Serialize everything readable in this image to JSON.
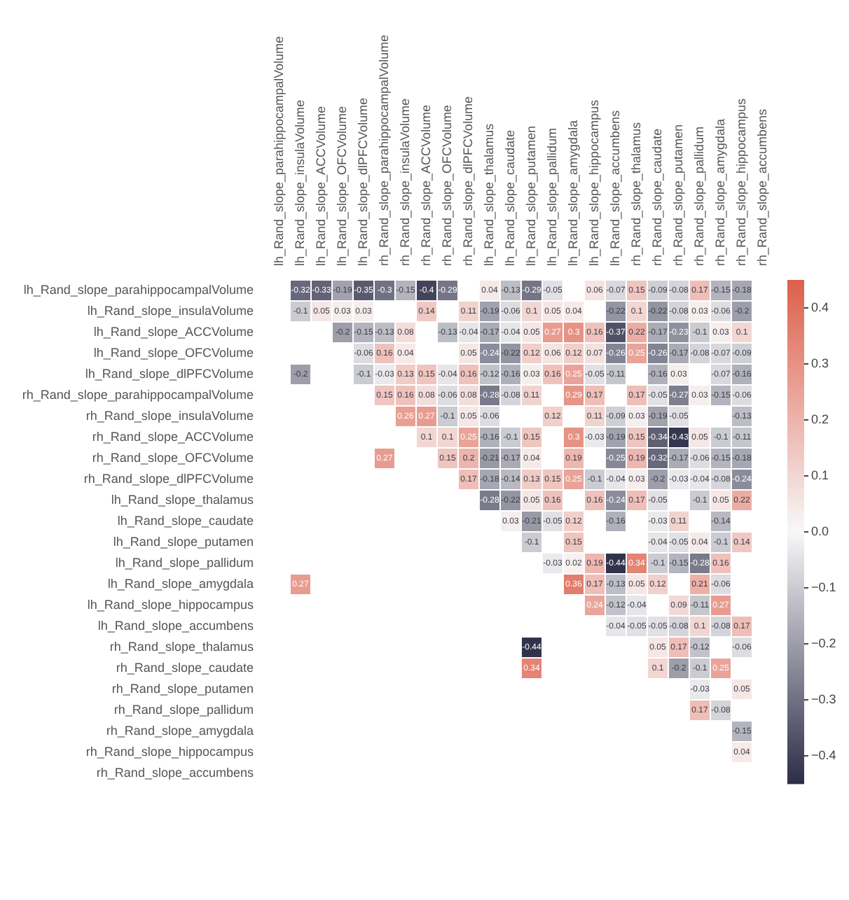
{
  "chart_data": {
    "type": "heatmap",
    "categories": [
      "lh_Rand_slope_parahippocampalVolume",
      "lh_Rand_slope_insulaVolume",
      "lh_Rand_slope_ACCVolume",
      "lh_Rand_slope_OFCVolume",
      "lh_Rand_slope_dlPFCVolume",
      "rh_Rand_slope_parahippocampalVolume",
      "rh_Rand_slope_insulaVolume",
      "rh_Rand_slope_ACCVolume",
      "rh_Rand_slope_OFCVolume",
      "rh_Rand_slope_dlPFCVolume",
      "lh_Rand_slope_thalamus",
      "lh_Rand_slope_caudate",
      "lh_Rand_slope_putamen",
      "lh_Rand_slope_pallidum",
      "lh_Rand_slope_amygdala",
      "lh_Rand_slope_hippocampus",
      "lh_Rand_slope_accumbens",
      "rh_Rand_slope_thalamus",
      "rh_Rand_slope_caudate",
      "rh_Rand_slope_putamen",
      "rh_Rand_slope_pallidum",
      "rh_Rand_slope_amygdala",
      "rh_Rand_slope_hippocampus",
      "rh_Rand_slope_accumbens"
    ],
    "y_categories": [
      "lh_Rand_slope_parahippocampalVolume",
      "lh_Rand_slope_insulaVolume",
      "lh_Rand_slope_ACCVolume",
      "lh_Rand_slope_OFCVolume",
      "lh_Rand_slope_dlPFCVolume",
      "rh_Rand_slope_parahippocampalVolume",
      "rh_Rand_slope_insulaVolume",
      "rh_Rand_slope_ACCVolume",
      "rh_Rand_slope_OFCVolume",
      "rh_Rand_slope_dlPFCVolume",
      "lh_Rand_slope_thalamus",
      "lh_Rand_slope_caudate",
      "lh_Rand_slope_putamen",
      "lh_Rand_slope_pallidum",
      "lh_Rand_slope_amygdala",
      "lh_Rand_slope_hippocampus",
      "lh_Rand_slope_accumbens",
      "rh_Rand_slope_thalamus",
      "rh_Rand_slope_caudate",
      "rh_Rand_slope_putamen",
      "rh_Rand_slope_pallidum",
      "rh_Rand_slope_amygdala",
      "rh_Rand_slope_hippocampus",
      "rh_Rand_slope_accumbens"
    ],
    "cells": [
      [
        null,
        -0.32,
        -0.33,
        -0.19,
        -0.35,
        -0.3,
        -0.15,
        -0.4,
        -0.29,
        null,
        0.04,
        -0.13,
        -0.29,
        -0.05,
        null,
        0.06,
        -0.07,
        0.15,
        -0.09,
        -0.08,
        0.17,
        -0.15,
        -0.18,
        null
      ],
      [
        null,
        -0.1,
        0.05,
        0.03,
        0.03,
        null,
        null,
        0.14,
        null,
        0.11,
        -0.19,
        -0.06,
        0.1,
        0.05,
        0.04,
        null,
        -0.22,
        0.1,
        -0.22,
        -0.08,
        0.03,
        -0.06,
        -0.2,
        null
      ],
      [
        null,
        null,
        null,
        -0.2,
        -0.15,
        -0.13,
        0.08,
        null,
        -0.13,
        -0.04,
        -0.17,
        -0.04,
        0.05,
        0.27,
        0.3,
        0.16,
        -0.37,
        0.22,
        -0.17,
        -0.23,
        -0.1,
        0.03,
        0.1,
        null
      ],
      [
        null,
        null,
        null,
        null,
        -0.06,
        0.16,
        0.04,
        null,
        null,
        0.05,
        -0.24,
        -0.22,
        0.12,
        0.06,
        0.12,
        0.07,
        -0.26,
        0.25,
        -0.26,
        -0.17,
        -0.08,
        -0.07,
        -0.09,
        null
      ],
      [
        null,
        -0.2,
        null,
        null,
        -0.1,
        -0.03,
        0.13,
        0.15,
        -0.04,
        0.16,
        -0.12,
        -0.16,
        0.03,
        0.16,
        0.25,
        -0.05,
        -0.11,
        null,
        -0.16,
        0.03,
        null,
        -0.07,
        -0.16,
        null
      ],
      [
        null,
        null,
        null,
        null,
        null,
        0.15,
        0.16,
        0.08,
        -0.06,
        0.08,
        -0.28,
        -0.08,
        0.11,
        null,
        0.29,
        0.17,
        null,
        0.17,
        -0.05,
        -0.27,
        0.03,
        -0.15,
        -0.06,
        null
      ],
      [
        null,
        null,
        null,
        null,
        null,
        null,
        0.26,
        0.27,
        -0.1,
        0.05,
        -0.06,
        null,
        null,
        0.12,
        null,
        0.11,
        -0.09,
        0.03,
        -0.19,
        -0.05,
        null,
        null,
        -0.13,
        null
      ],
      [
        null,
        null,
        null,
        null,
        null,
        null,
        null,
        0.1,
        0.1,
        0.25,
        -0.16,
        -0.1,
        0.15,
        null,
        0.3,
        -0.03,
        -0.19,
        0.15,
        -0.34,
        -0.43,
        0.05,
        -0.1,
        -0.11,
        null
      ],
      [
        null,
        null,
        null,
        null,
        null,
        0.27,
        null,
        null,
        0.15,
        0.2,
        -0.21,
        -0.17,
        0.04,
        null,
        0.19,
        null,
        -0.25,
        0.19,
        -0.32,
        -0.17,
        -0.06,
        -0.15,
        -0.18,
        null
      ],
      [
        null,
        null,
        null,
        null,
        null,
        null,
        null,
        null,
        null,
        0.17,
        -0.18,
        -0.14,
        0.13,
        0.15,
        0.25,
        -0.1,
        -0.04,
        0.03,
        -0.2,
        -0.03,
        -0.04,
        -0.08,
        -0.24,
        null
      ],
      [
        null,
        null,
        null,
        null,
        null,
        null,
        null,
        null,
        null,
        null,
        -0.28,
        -0.22,
        0.05,
        0.16,
        null,
        0.16,
        -0.24,
        0.17,
        -0.05,
        null,
        -0.1,
        0.05,
        0.22,
        null
      ],
      [
        null,
        null,
        null,
        null,
        null,
        null,
        null,
        null,
        null,
        null,
        null,
        0.03,
        -0.21,
        -0.05,
        0.12,
        null,
        -0.16,
        null,
        -0.03,
        0.11,
        null,
        -0.14,
        null,
        null
      ],
      [
        null,
        null,
        null,
        null,
        null,
        null,
        null,
        null,
        null,
        null,
        null,
        null,
        -0.1,
        null,
        0.15,
        null,
        null,
        null,
        -0.04,
        -0.05,
        0.04,
        -0.1,
        0.14,
        null
      ],
      [
        null,
        null,
        null,
        null,
        null,
        null,
        null,
        null,
        null,
        null,
        null,
        null,
        null,
        -0.03,
        0.02,
        0.19,
        -0.44,
        0.34,
        -0.1,
        -0.15,
        -0.28,
        0.16,
        null,
        null
      ],
      [
        null,
        0.27,
        null,
        null,
        null,
        null,
        null,
        null,
        null,
        null,
        null,
        null,
        null,
        null,
        0.36,
        0.17,
        -0.13,
        0.05,
        0.12,
        null,
        0.21,
        -0.06,
        null,
        null
      ],
      [
        null,
        null,
        null,
        null,
        null,
        null,
        null,
        null,
        null,
        null,
        null,
        null,
        null,
        null,
        null,
        0.24,
        -0.12,
        -0.04,
        null,
        0.09,
        -0.11,
        0.27,
        null,
        null
      ],
      [
        null,
        null,
        null,
        null,
        null,
        null,
        null,
        null,
        null,
        null,
        null,
        null,
        null,
        null,
        null,
        null,
        -0.04,
        -0.05,
        -0.05,
        -0.08,
        0.1,
        -0.08,
        0.17,
        null
      ],
      [
        null,
        null,
        null,
        null,
        null,
        null,
        null,
        null,
        null,
        null,
        null,
        null,
        -0.44,
        null,
        null,
        null,
        null,
        null,
        0.05,
        0.17,
        -0.12,
        null,
        -0.06,
        null
      ],
      [
        null,
        null,
        null,
        null,
        null,
        null,
        null,
        null,
        null,
        null,
        null,
        null,
        0.34,
        null,
        null,
        null,
        null,
        null,
        0.1,
        -0.2,
        -0.1,
        0.25,
        null,
        null
      ],
      [
        null,
        null,
        null,
        null,
        null,
        null,
        null,
        null,
        null,
        null,
        null,
        null,
        null,
        null,
        null,
        null,
        null,
        null,
        null,
        null,
        -0.03,
        null,
        0.05,
        null
      ],
      [
        null,
        null,
        null,
        null,
        null,
        null,
        null,
        null,
        null,
        null,
        null,
        null,
        null,
        null,
        null,
        null,
        null,
        null,
        null,
        null,
        0.17,
        -0.08,
        null,
        null
      ],
      [
        null,
        null,
        null,
        null,
        null,
        null,
        null,
        null,
        null,
        null,
        null,
        null,
        null,
        null,
        null,
        null,
        null,
        null,
        null,
        null,
        null,
        null,
        -0.15,
        null
      ],
      [
        null,
        null,
        null,
        null,
        null,
        null,
        null,
        null,
        null,
        null,
        null,
        null,
        null,
        null,
        null,
        null,
        null,
        null,
        null,
        null,
        null,
        null,
        0.04,
        null
      ],
      [
        null,
        null,
        null,
        null,
        null,
        null,
        null,
        null,
        null,
        null,
        null,
        null,
        null,
        null,
        null,
        null,
        null,
        null,
        null,
        null,
        null,
        null,
        null,
        null
      ]
    ],
    "clim": [
      -0.45,
      0.45
    ],
    "cticks": [
      {
        "value": 0.4,
        "label": "0.4"
      },
      {
        "value": 0.3,
        "label": "0.3"
      },
      {
        "value": 0.2,
        "label": "0.2"
      },
      {
        "value": 0.1,
        "label": "0.1"
      },
      {
        "value": 0,
        "label": "0.0"
      },
      {
        "value": -0.1,
        "label": "−0.1"
      },
      {
        "value": -0.2,
        "label": "−0.2"
      },
      {
        "value": -0.3,
        "label": "−0.3"
      },
      {
        "value": -0.4,
        "label": "−0.4"
      }
    ],
    "data_labels": true
  }
}
